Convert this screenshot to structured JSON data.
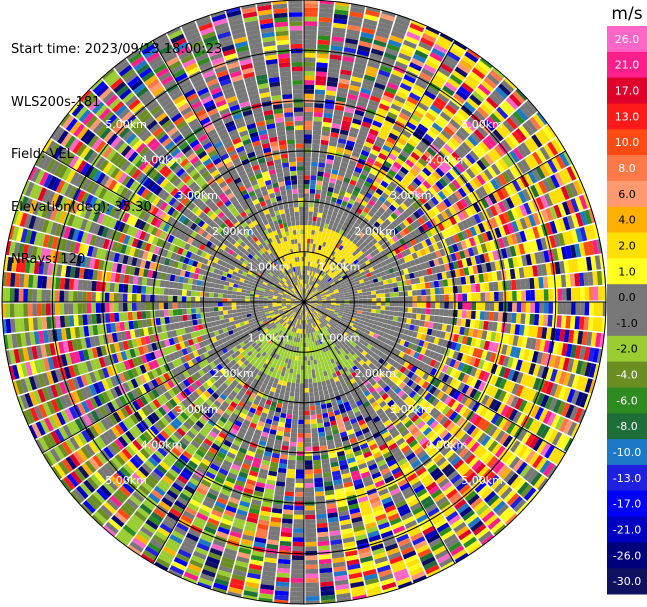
{
  "info": {
    "start_time": "Start time: 2023/09/13 18:00:23",
    "instrument": "WLS200s-181",
    "field": "Field: VEL",
    "elevation": "Elevation(deg): 35.30",
    "nrays": "NRays: 120"
  },
  "chart_data": {
    "type": "heatmap",
    "projection": "polar-ppi",
    "field": "VEL",
    "units": "m/s",
    "ray_count": 120,
    "range_max_km": 6.0,
    "range_rings_km": [
      1.0,
      2.0,
      3.0,
      4.0,
      5.0,
      6.0
    ],
    "range_labels": [
      "1.00km",
      "2.00km",
      "3.00km",
      "4.00km",
      "5.00km"
    ],
    "colorbar": {
      "title": "m/s",
      "ticks": [
        "26.0",
        "21.0",
        "17.0",
        "13.0",
        "10.0",
        "8.0",
        "6.0",
        "4.0",
        "2.0",
        "1.0",
        "0.0",
        "-1.0",
        "-2.0",
        "-4.0",
        "-6.0",
        "-8.0",
        "-10.0",
        "-13.0",
        "-17.0",
        "-21.0",
        "-26.0",
        "-30.0"
      ],
      "colors": [
        "#ff66c8",
        "#ff1f8c",
        "#e0002c",
        "#ff1a1a",
        "#ff4a14",
        "#ff7848",
        "#ff9a70",
        "#ffb000",
        "#ffe000",
        "#ffff20",
        "#787878",
        "#787878",
        "#9acd32",
        "#6b8e23",
        "#2e8b20",
        "#1e6e3a",
        "#1e78c8",
        "#2020e0",
        "#0000ff",
        "#0000c0",
        "#00007a",
        "#101060"
      ]
    },
    "pattern": {
      "inner_positive_sector": "north-northeast",
      "inner_negative_sector": "south",
      "outer_positive_side": "east",
      "outer_negative_side": "west-southwest",
      "noisy_beyond_km": 3.0
    }
  }
}
